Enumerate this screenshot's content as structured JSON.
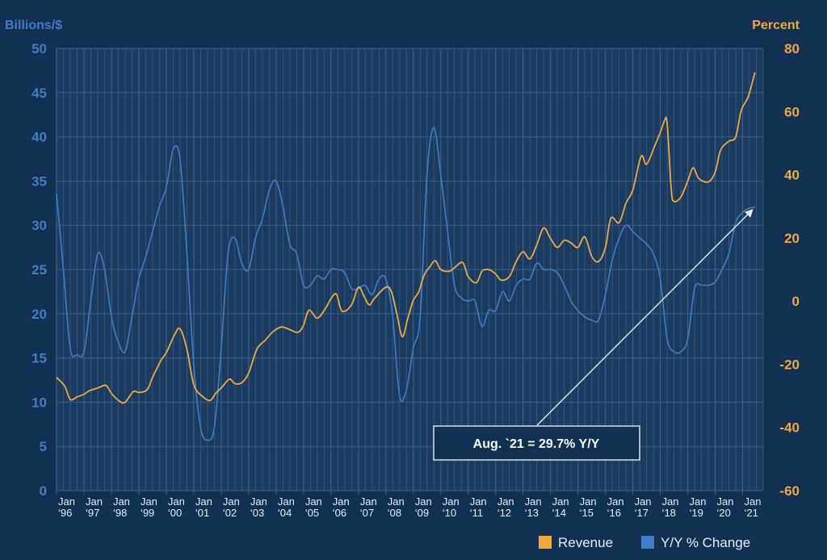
{
  "chart_data": {
    "type": "line",
    "left_axis": {
      "title": "Billions/$",
      "ylim": [
        0,
        50
      ],
      "ticks": [
        0,
        5,
        10,
        15,
        20,
        25,
        30,
        35,
        40,
        45,
        50
      ]
    },
    "right_axis": {
      "title": "Percent",
      "ylim": [
        -60,
        80
      ],
      "ticks": [
        -60,
        -40,
        -20,
        0,
        20,
        40,
        60,
        80
      ]
    },
    "x_axis": {
      "range": [
        1996.0,
        2021.75
      ],
      "tick_months": [
        "Jan",
        "Jan",
        "Jan",
        "Jan",
        "Jan",
        "Jan",
        "Jan",
        "Jan",
        "Jan",
        "Jan",
        "Jan",
        "Jan",
        "Jan",
        "Jan",
        "Jan",
        "Jan",
        "Jan",
        "Jan",
        "Jan",
        "Jan",
        "Jan",
        "Jan",
        "Jan",
        "Jan",
        "Jan",
        "Jan"
      ],
      "tick_years": [
        "‘96",
        "‘97",
        "‘98",
        "‘99",
        "‘00",
        "‘01",
        "‘02",
        "‘03",
        "‘04",
        "‘05",
        "‘06",
        "‘07",
        "‘08",
        "‘09",
        "‘10",
        "‘11",
        "‘12",
        "‘13",
        "‘14",
        "‘15",
        "‘16",
        "‘17",
        "‘18",
        "‘19",
        "‘20",
        "‘21"
      ]
    },
    "series": [
      {
        "name": "Revenue",
        "axis": "left",
        "color": "#f0a93d",
        "points": [
          [
            1996.0,
            12.8
          ],
          [
            1996.3,
            11.8
          ],
          [
            1996.5,
            10.3
          ],
          [
            1996.75,
            10.6
          ],
          [
            1997.0,
            10.9
          ],
          [
            1997.2,
            11.3
          ],
          [
            1997.5,
            11.6
          ],
          [
            1997.8,
            11.9
          ],
          [
            1998.0,
            11.0
          ],
          [
            1998.3,
            10.1
          ],
          [
            1998.5,
            10.0
          ],
          [
            1998.8,
            11.2
          ],
          [
            1999.0,
            11.1
          ],
          [
            1999.3,
            11.4
          ],
          [
            1999.5,
            12.8
          ],
          [
            1999.8,
            14.7
          ],
          [
            2000.0,
            15.6
          ],
          [
            2000.3,
            17.6
          ],
          [
            2000.5,
            18.3
          ],
          [
            2000.75,
            16.0
          ],
          [
            2001.0,
            12.0
          ],
          [
            2001.3,
            10.7
          ],
          [
            2001.6,
            10.2
          ],
          [
            2001.8,
            11.0
          ],
          [
            2002.0,
            11.6
          ],
          [
            2002.3,
            12.6
          ],
          [
            2002.5,
            12.1
          ],
          [
            2002.75,
            12.2
          ],
          [
            2003.0,
            13.3
          ],
          [
            2003.3,
            16.0
          ],
          [
            2003.6,
            17.0
          ],
          [
            2003.9,
            18.0
          ],
          [
            2004.2,
            18.5
          ],
          [
            2004.5,
            18.2
          ],
          [
            2004.8,
            17.9
          ],
          [
            2005.0,
            18.7
          ],
          [
            2005.2,
            20.4
          ],
          [
            2005.5,
            19.5
          ],
          [
            2005.8,
            20.6
          ],
          [
            2006.0,
            21.7
          ],
          [
            2006.2,
            22.2
          ],
          [
            2006.4,
            20.3
          ],
          [
            2006.75,
            21.0
          ],
          [
            2007.0,
            23.0
          ],
          [
            2007.2,
            22.0
          ],
          [
            2007.4,
            21.0
          ],
          [
            2007.6,
            21.8
          ],
          [
            2008.0,
            23.0
          ],
          [
            2008.2,
            22.5
          ],
          [
            2008.4,
            20.0
          ],
          [
            2008.6,
            17.4
          ],
          [
            2008.8,
            19.5
          ],
          [
            2009.0,
            21.5
          ],
          [
            2009.2,
            22.5
          ],
          [
            2009.4,
            24.4
          ],
          [
            2009.6,
            25.3
          ],
          [
            2009.8,
            26.0
          ],
          [
            2010.0,
            25.0
          ],
          [
            2010.3,
            24.8
          ],
          [
            2010.5,
            25.2
          ],
          [
            2010.8,
            25.8
          ],
          [
            2011.0,
            24.2
          ],
          [
            2011.3,
            23.5
          ],
          [
            2011.5,
            24.8
          ],
          [
            2011.75,
            25.0
          ],
          [
            2012.0,
            24.5
          ],
          [
            2012.2,
            23.8
          ],
          [
            2012.5,
            24.2
          ],
          [
            2012.75,
            25.9
          ],
          [
            2013.0,
            27.0
          ],
          [
            2013.25,
            26.2
          ],
          [
            2013.5,
            27.8
          ],
          [
            2013.75,
            29.7
          ],
          [
            2014.0,
            28.5
          ],
          [
            2014.25,
            27.5
          ],
          [
            2014.5,
            28.3
          ],
          [
            2014.75,
            28.0
          ],
          [
            2015.0,
            27.5
          ],
          [
            2015.25,
            28.7
          ],
          [
            2015.5,
            26.5
          ],
          [
            2015.75,
            25.9
          ],
          [
            2016.0,
            27.5
          ],
          [
            2016.2,
            30.8
          ],
          [
            2016.5,
            30.3
          ],
          [
            2016.75,
            32.5
          ],
          [
            2017.0,
            34.0
          ],
          [
            2017.3,
            37.8
          ],
          [
            2017.5,
            36.9
          ],
          [
            2017.8,
            39.0
          ],
          [
            2018.0,
            40.5
          ],
          [
            2018.15,
            41.8
          ],
          [
            2018.25,
            41.5
          ],
          [
            2018.4,
            34.0
          ],
          [
            2018.5,
            32.7
          ],
          [
            2018.75,
            33.2
          ],
          [
            2019.0,
            35.0
          ],
          [
            2019.2,
            36.5
          ],
          [
            2019.4,
            35.3
          ],
          [
            2019.75,
            34.9
          ],
          [
            2020.0,
            36.0
          ],
          [
            2020.2,
            38.5
          ],
          [
            2020.5,
            39.5
          ],
          [
            2020.75,
            40.0
          ],
          [
            2020.95,
            43.0
          ],
          [
            2021.2,
            44.5
          ],
          [
            2021.45,
            47.3
          ]
        ]
      },
      {
        "name": "Y/Y % Change",
        "axis": "right",
        "color": "#3f7fc8",
        "points": [
          [
            1996.0,
            34.0
          ],
          [
            1996.25,
            10.0
          ],
          [
            1996.5,
            -15.0
          ],
          [
            1996.75,
            -17.0
          ],
          [
            1997.0,
            -16.0
          ],
          [
            1997.25,
            0.0
          ],
          [
            1997.5,
            15.0
          ],
          [
            1997.75,
            10.0
          ],
          [
            1998.0,
            -5.0
          ],
          [
            1998.25,
            -13.0
          ],
          [
            1998.5,
            -16.0
          ],
          [
            1998.75,
            -5.0
          ],
          [
            1999.0,
            7.0
          ],
          [
            1999.25,
            14.0
          ],
          [
            1999.5,
            22.0
          ],
          [
            1999.75,
            30.0
          ],
          [
            2000.0,
            36.0
          ],
          [
            2000.25,
            48.0
          ],
          [
            2000.5,
            45.0
          ],
          [
            2000.75,
            15.0
          ],
          [
            2001.0,
            -20.0
          ],
          [
            2001.25,
            -40.0
          ],
          [
            2001.5,
            -44.0
          ],
          [
            2001.75,
            -40.0
          ],
          [
            2002.0,
            -15.0
          ],
          [
            2002.25,
            15.0
          ],
          [
            2002.5,
            20.0
          ],
          [
            2002.75,
            12.0
          ],
          [
            2003.0,
            10.0
          ],
          [
            2003.25,
            20.0
          ],
          [
            2003.5,
            26.0
          ],
          [
            2003.75,
            35.0
          ],
          [
            2004.0,
            38.0
          ],
          [
            2004.25,
            30.0
          ],
          [
            2004.5,
            18.0
          ],
          [
            2004.75,
            15.0
          ],
          [
            2005.0,
            5.0
          ],
          [
            2005.25,
            5.0
          ],
          [
            2005.5,
            8.0
          ],
          [
            2005.75,
            7.0
          ],
          [
            2006.0,
            10.0
          ],
          [
            2006.25,
            10.0
          ],
          [
            2006.5,
            9.0
          ],
          [
            2006.75,
            4.0
          ],
          [
            2007.0,
            4.0
          ],
          [
            2007.25,
            5.0
          ],
          [
            2007.5,
            2.0
          ],
          [
            2007.75,
            7.0
          ],
          [
            2008.0,
            7.0
          ],
          [
            2008.25,
            -5.0
          ],
          [
            2008.5,
            -30.0
          ],
          [
            2008.75,
            -28.0
          ],
          [
            2009.0,
            -15.0
          ],
          [
            2009.25,
            -5.0
          ],
          [
            2009.5,
            40.0
          ],
          [
            2009.75,
            55.0
          ],
          [
            2010.0,
            40.0
          ],
          [
            2010.25,
            22.0
          ],
          [
            2010.5,
            5.0
          ],
          [
            2010.75,
            1.0
          ],
          [
            2011.0,
            0.0
          ],
          [
            2011.25,
            0.0
          ],
          [
            2011.5,
            -8.0
          ],
          [
            2011.75,
            -3.0
          ],
          [
            2012.0,
            -3.0
          ],
          [
            2012.25,
            3.0
          ],
          [
            2012.5,
            0.0
          ],
          [
            2012.75,
            5.0
          ],
          [
            2013.0,
            7.0
          ],
          [
            2013.25,
            7.0
          ],
          [
            2013.5,
            12.0
          ],
          [
            2013.75,
            10.0
          ],
          [
            2014.0,
            10.0
          ],
          [
            2014.25,
            9.0
          ],
          [
            2014.5,
            5.0
          ],
          [
            2014.75,
            0.0
          ],
          [
            2015.0,
            -3.0
          ],
          [
            2015.25,
            -5.0
          ],
          [
            2015.5,
            -6.0
          ],
          [
            2015.75,
            -6.0
          ],
          [
            2016.0,
            2.0
          ],
          [
            2016.25,
            13.0
          ],
          [
            2016.5,
            20.0
          ],
          [
            2016.75,
            24.0
          ],
          [
            2017.0,
            22.0
          ],
          [
            2017.25,
            20.0
          ],
          [
            2017.5,
            18.0
          ],
          [
            2017.75,
            15.0
          ],
          [
            2018.0,
            7.0
          ],
          [
            2018.25,
            -12.0
          ],
          [
            2018.5,
            -16.0
          ],
          [
            2018.75,
            -16.0
          ],
          [
            2019.0,
            -12.0
          ],
          [
            2019.25,
            4.0
          ],
          [
            2019.5,
            5.0
          ],
          [
            2019.75,
            5.0
          ],
          [
            2020.0,
            6.0
          ],
          [
            2020.25,
            10.0
          ],
          [
            2020.5,
            15.0
          ],
          [
            2020.75,
            25.0
          ],
          [
            2021.0,
            28.0
          ],
          [
            2021.2,
            29.3
          ],
          [
            2021.45,
            29.7
          ]
        ]
      }
    ],
    "legend": {
      "position": "bottom-right",
      "entries": [
        "Revenue",
        "Y/Y % Change"
      ]
    },
    "annotation": {
      "text": "Aug. `21 = 29.7% Y/Y",
      "x": 2021.45,
      "y": 29.7,
      "axis": "right"
    },
    "grid": true
  },
  "colors": {
    "background": "#123052",
    "plot_background": "#1b3b61",
    "grid": "#3d5f86",
    "revenue": "#f0a93d",
    "yoy": "#3f7fc8"
  }
}
